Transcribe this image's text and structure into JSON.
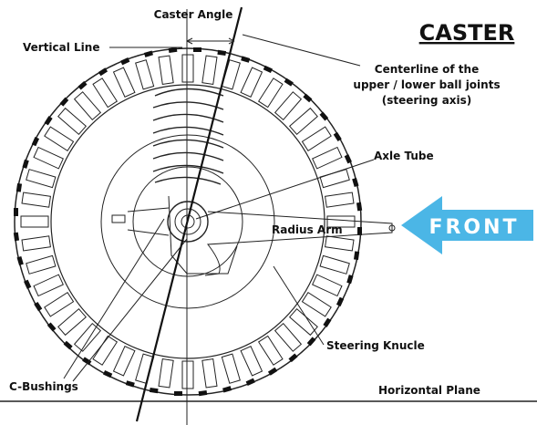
{
  "title": "CASTER",
  "labels": {
    "caster_angle": "Caster Angle",
    "vertical_line": "Vertical Line",
    "centerline": [
      "Centerline of the",
      "upper / lower ball joints",
      "(steering axis)"
    ],
    "axle_tube": "Axle Tube",
    "radius_arm": "Radius Arm",
    "front": "FRONT",
    "steering_knuckle": "Steering Knucle",
    "c_bushings": "C-Bushings",
    "horizontal_plane": "Horizontal Plane"
  }
}
